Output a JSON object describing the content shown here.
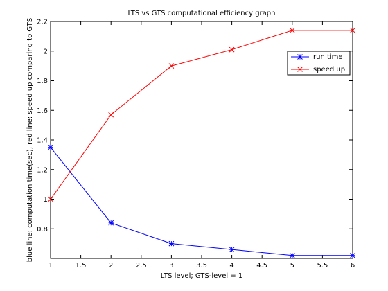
{
  "chart_data": {
    "type": "line",
    "title": "LTS vs GTS computational efficiency graph",
    "xlabel": "LTS level; GTS-level = 1",
    "ylabel": "blue line: computation time(sec), red line: speed up comparing to GTS",
    "xlim": [
      1,
      6
    ],
    "ylim": [
      0.6,
      2.2
    ],
    "xticks": [
      1,
      1.5,
      2,
      2.5,
      3,
      3.5,
      4,
      4.5,
      5,
      5.5,
      6
    ],
    "xtick_labels": [
      "1",
      "1.5",
      "2",
      "2.5",
      "3",
      "3.5",
      "4",
      "4.5",
      "5",
      "5.5",
      "6"
    ],
    "yticks": [
      0.8,
      1.0,
      1.2,
      1.4,
      1.6,
      1.8,
      2.0,
      2.2
    ],
    "ytick_labels": [
      "0.8",
      "1",
      "1.2",
      "1.4",
      "1.6",
      "1.8",
      "2",
      "2.2"
    ],
    "grid": false,
    "legend_position": "top-right",
    "x": [
      1,
      2,
      3,
      4,
      5,
      6
    ],
    "series": [
      {
        "name": "run time",
        "values": [
          1.35,
          0.84,
          0.7,
          0.66,
          0.62,
          0.62
        ],
        "color": "#0000ff",
        "marker": "asterisk"
      },
      {
        "name": "speed up",
        "values": [
          1.0,
          1.57,
          1.9,
          2.01,
          2.14,
          2.14
        ],
        "color": "#ff0000",
        "marker": "x"
      }
    ]
  }
}
